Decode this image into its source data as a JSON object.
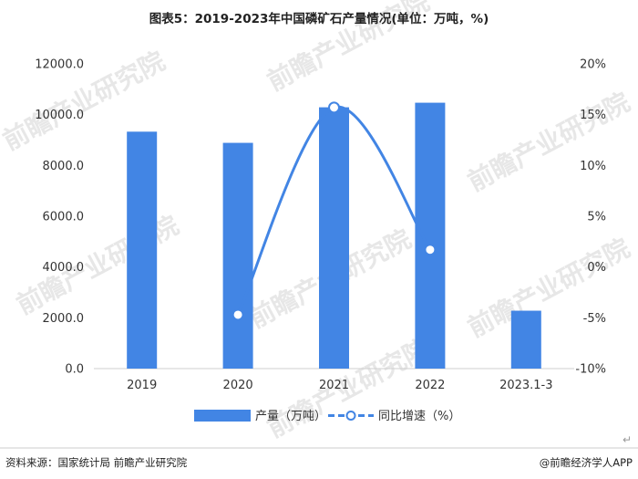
{
  "watermark": "前瞻产业研究院",
  "source_left": "资料来源：国家统计局 前瞻产业研究院",
  "source_right": "@前瞻经济学人APP",
  "return_glyph": "↵",
  "chart_data": {
    "type": "bar",
    "title": "图表5：2019-2023年中国磷矿石产量情况(单位：万吨，%)",
    "categories": [
      "2019",
      "2020",
      "2021",
      "2022",
      "2023.1-3"
    ],
    "series": [
      {
        "name": "产量（万吨）",
        "type": "bar",
        "axis": "left",
        "color": "#4285e4",
        "values": [
          9330,
          8890,
          10290,
          10470,
          2280
        ]
      },
      {
        "name": "同比增速（%）",
        "type": "line",
        "axis": "right",
        "color": "#4285e4",
        "values": [
          null,
          -4.7,
          15.7,
          1.7,
          null
        ]
      }
    ],
    "y_left": {
      "ylim": [
        0,
        12000
      ],
      "ticks": [
        0,
        2000,
        4000,
        6000,
        8000,
        10000,
        12000
      ],
      "tick_labels": [
        "0.0",
        "2000.0",
        "4000.0",
        "6000.0",
        "8000.0",
        "10000.0",
        "12000.0"
      ]
    },
    "y_right": {
      "ylim": [
        -10,
        20
      ],
      "ticks": [
        -10,
        -5,
        0,
        5,
        10,
        15,
        20
      ],
      "tick_labels": [
        "-10%",
        "-5%",
        "0%",
        "5%",
        "10%",
        "15%",
        "20%"
      ]
    },
    "grid": false,
    "legend_position": "bottom"
  }
}
